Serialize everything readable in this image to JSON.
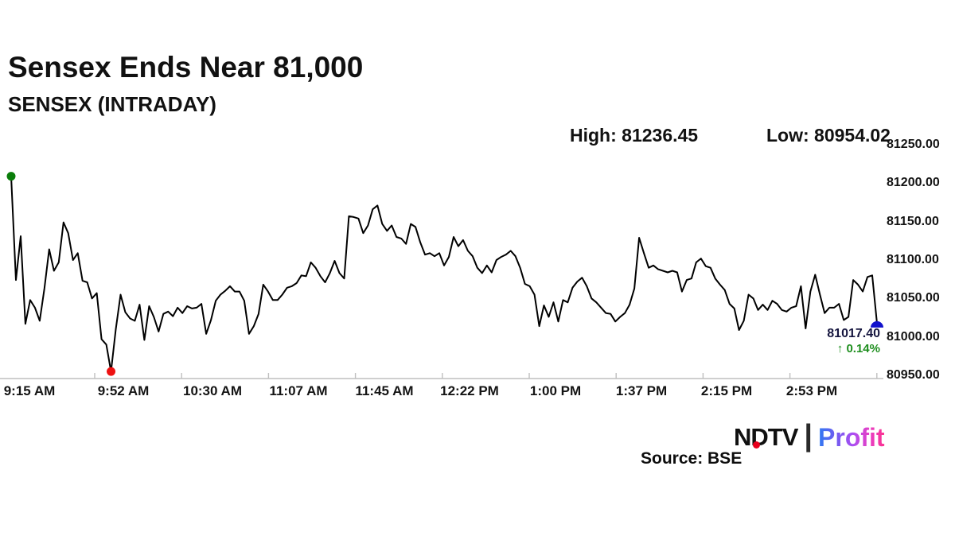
{
  "header": {
    "title": "Sensex Ends Near 81,000",
    "subtitle": "SENSEX (INTRADAY)",
    "high": {
      "label": "High:",
      "value": "81236.45"
    },
    "low": {
      "label": "Low:",
      "value": "80954.02"
    }
  },
  "chart_data": {
    "type": "line",
    "title": "SENSEX (INTRADAY)",
    "x_tick_labels": [
      "9:15 AM",
      "9:52 AM",
      "10:30 AM",
      "11:07 AM",
      "11:45 AM",
      "12:22 PM",
      "1:00 PM",
      "1:37 PM",
      "2:15 PM",
      "2:53 PM"
    ],
    "y_tick_labels": [
      "81250.00",
      "81200.00",
      "81150.00",
      "81100.00",
      "81050.00",
      "81000.00",
      "80950.00"
    ],
    "ylim": [
      80950,
      81250
    ],
    "grid": false,
    "legend": false,
    "high": 81236.45,
    "low": 80954.02,
    "last": 81017.4,
    "change_percent": 0.14,
    "line_color": "#000000",
    "axis_color": "#bfbfbf",
    "open_marker_color": "#0a7d0a",
    "low_marker_color": "#ee1111",
    "last_marker_color": "#1212cc",
    "series": [
      {
        "name": "SENSEX",
        "values": [
          81209,
          81074,
          81131,
          81017,
          81048,
          81038,
          81021,
          81063,
          81114,
          81086,
          81097,
          81149,
          81135,
          81100,
          81109,
          81073,
          81071,
          81050,
          81057,
          80997,
          80990,
          80955,
          81010,
          81055,
          81032,
          81024,
          81021,
          81042,
          80996,
          81040,
          81026,
          81007,
          81030,
          81033,
          81027,
          81038,
          81031,
          81040,
          81037,
          81038,
          81043,
          81004,
          81022,
          81047,
          81055,
          81060,
          81066,
          81059,
          81059,
          81047,
          81004,
          81014,
          81030,
          81068,
          81059,
          81048,
          81048,
          81055,
          81064,
          81066,
          81070,
          81080,
          81079,
          81097,
          81090,
          81079,
          81071,
          81083,
          81099,
          81083,
          81076,
          81157,
          81156,
          81154,
          81135,
          81145,
          81166,
          81171,
          81147,
          81138,
          81145,
          81130,
          81128,
          81121,
          81147,
          81143,
          81123,
          81107,
          81109,
          81105,
          81109,
          81093,
          81104,
          81130,
          81118,
          81126,
          81112,
          81105,
          81090,
          81083,
          81093,
          81084,
          81100,
          81104,
          81107,
          81112,
          81105,
          81090,
          81069,
          81066,
          81055,
          81014,
          81041,
          81026,
          81045,
          81020,
          81048,
          81045,
          81064,
          81072,
          81077,
          81066,
          81050,
          81045,
          81038,
          81031,
          81030,
          81020,
          81026,
          81031,
          81042,
          81063,
          81129,
          81109,
          81090,
          81093,
          81088,
          81086,
          81084,
          81086,
          81084,
          81059,
          81074,
          81076,
          81097,
          81102,
          81092,
          81090,
          81076,
          81068,
          81061,
          81043,
          81037,
          81009,
          81021,
          81055,
          81050,
          81035,
          81042,
          81035,
          81047,
          81043,
          81035,
          81033,
          81038,
          81040,
          81066,
          81011,
          81059,
          81081,
          81055,
          81031,
          81038,
          81038,
          81043,
          81022,
          81026,
          81074,
          81068,
          81059,
          81078,
          81080,
          81017.4
        ]
      }
    ]
  },
  "callout": {
    "price": "81017.40",
    "change_arrow": "↑",
    "change_text": "0.14%",
    "price_color": "#16163f",
    "change_color": "#1e8e1e"
  },
  "footer": {
    "source": "Source: BSE",
    "logo": {
      "ndtv": "NDTV",
      "separator": "|",
      "profit": "Profit",
      "dot_color": "#e8001d",
      "profit_gradient": [
        "#2f7bf3",
        "#6f5cf0",
        "#a94ef2",
        "#e83fc4",
        "#ff2f86"
      ]
    }
  }
}
